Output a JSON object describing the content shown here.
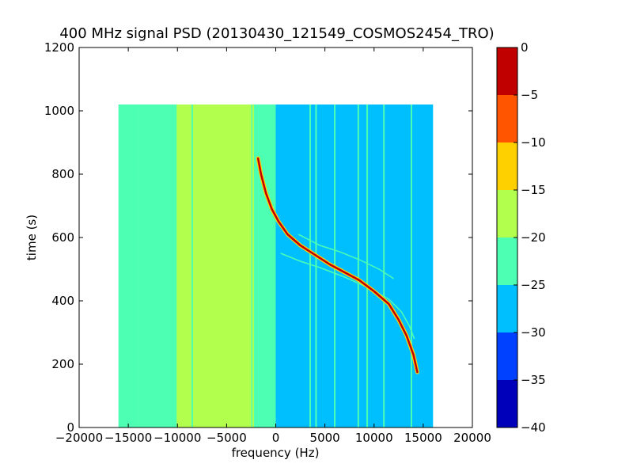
{
  "chart_data": {
    "type": "heatmap",
    "title": "400 MHz signal PSD (20130430_121549_COSMOS2454_TRO)",
    "xlabel": "frequency (Hz)",
    "ylabel": "time (s)",
    "xlim": [
      -20000,
      20000
    ],
    "ylim": [
      0,
      1200
    ],
    "x_ticks": [
      -20000,
      -15000,
      -10000,
      -5000,
      0,
      5000,
      10000,
      15000,
      20000
    ],
    "y_ticks": [
      0,
      200,
      400,
      600,
      800,
      1000,
      1200
    ],
    "x_tick_labels": [
      "−20000",
      "−15000",
      "−10000",
      "−5000",
      "0",
      "5000",
      "10000",
      "15000",
      "20000"
    ],
    "y_tick_labels": [
      "0",
      "200",
      "400",
      "600",
      "800",
      "1000",
      "1200"
    ],
    "data_extent": {
      "x": [
        -16000,
        16000
      ],
      "y": [
        0,
        1020
      ]
    },
    "colorbar": {
      "levels": [
        -40,
        -35,
        -30,
        -25,
        -20,
        -15,
        -10,
        -5,
        0
      ],
      "tick_labels": [
        "−40",
        "−35",
        "−30",
        "−25",
        "−20",
        "−15",
        "−10",
        "−5",
        "0"
      ],
      "colors": [
        "#0000bb",
        "#0040ff",
        "#00bfff",
        "#4dffb3",
        "#b3ff4d",
        "#ffd000",
        "#ff5500",
        "#c00000"
      ]
    },
    "background_regions": [
      {
        "x": [
          -16000,
          -14000
        ],
        "level": -22.5
      },
      {
        "x": [
          -14000,
          -10000
        ],
        "level": -25.0
      },
      {
        "x": [
          -10000,
          -2500
        ],
        "level": -20.0
      },
      {
        "x": [
          -2500,
          0
        ],
        "level": -25.0
      },
      {
        "x": [
          0,
          16000
        ],
        "level": -27.5
      }
    ],
    "vertical_lines": [
      {
        "x": -10000,
        "level": -17.5
      },
      {
        "x": -8500,
        "level": -22.5
      },
      {
        "x": -2300,
        "level": -17.5
      },
      {
        "x": 3500,
        "level": -22.5
      },
      {
        "x": 4100,
        "level": -22.5
      },
      {
        "x": 6000,
        "level": -22.5
      },
      {
        "x": 8400,
        "level": -22.5
      },
      {
        "x": 9300,
        "level": -22.5
      },
      {
        "x": 11000,
        "level": -22.5
      },
      {
        "x": 13800,
        "level": -22.5
      }
    ],
    "doppler_curve": {
      "level": -2.5,
      "points": [
        [
          -1800,
          850
        ],
        [
          -1500,
          800
        ],
        [
          -1000,
          740
        ],
        [
          -400,
          690
        ],
        [
          300,
          650
        ],
        [
          1200,
          610
        ],
        [
          2500,
          575
        ],
        [
          4000,
          545
        ],
        [
          5500,
          515
        ],
        [
          7000,
          490
        ],
        [
          8500,
          465
        ],
        [
          10000,
          430
        ],
        [
          11500,
          390
        ],
        [
          12500,
          340
        ],
        [
          13300,
          290
        ],
        [
          14000,
          230
        ],
        [
          14400,
          175
        ]
      ]
    },
    "secondary_curves": [
      {
        "level": -22.5,
        "points": [
          [
            500,
            550
          ],
          [
            2500,
            525
          ],
          [
            4500,
            505
          ],
          [
            7000,
            475
          ],
          [
            9500,
            440
          ],
          [
            11500,
            405
          ],
          [
            12800,
            365
          ],
          [
            13600,
            320
          ],
          [
            14100,
            280
          ]
        ]
      },
      {
        "level": -22.5,
        "points": [
          [
            2300,
            610
          ],
          [
            4500,
            575
          ],
          [
            6500,
            555
          ],
          [
            8500,
            530
          ],
          [
            10500,
            500
          ],
          [
            12000,
            470
          ]
        ]
      }
    ]
  }
}
